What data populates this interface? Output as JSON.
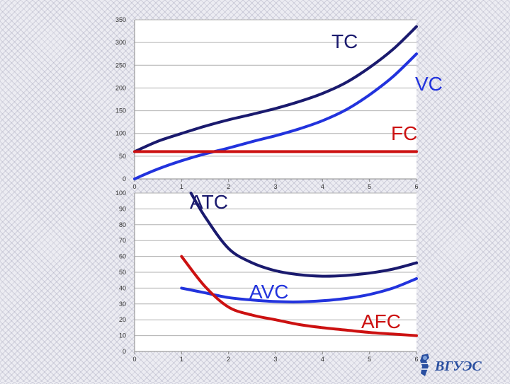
{
  "chart_data": [
    {
      "type": "line",
      "x": [
        0,
        1,
        2,
        3,
        4,
        5,
        6
      ],
      "xlim": [
        0,
        6
      ],
      "ylim": [
        0,
        350
      ],
      "x_ticks": [
        0,
        1,
        2,
        3,
        4,
        5,
        6
      ],
      "y_ticks": [
        0,
        50,
        100,
        150,
        200,
        250,
        300,
        350
      ],
      "grid": "horizontal",
      "legend": "none",
      "series": [
        {
          "name": "TC",
          "color": "#1a1a6e",
          "points": [
            [
              0,
              60
            ],
            [
              0.5,
              83
            ],
            [
              1,
              100
            ],
            [
              1.5,
              116
            ],
            [
              2,
              130
            ],
            [
              2.5,
              142
            ],
            [
              3,
              155
            ],
            [
              3.5,
              170
            ],
            [
              4,
              188
            ],
            [
              4.5,
              212
            ],
            [
              5,
              245
            ],
            [
              5.5,
              285
            ],
            [
              6,
              335
            ]
          ]
        },
        {
          "name": "VC",
          "color": "#2233dd",
          "points": [
            [
              0,
              0
            ],
            [
              0.5,
              22
            ],
            [
              1,
              40
            ],
            [
              1.5,
              55
            ],
            [
              2,
              68
            ],
            [
              2.5,
              82
            ],
            [
              3,
              95
            ],
            [
              3.5,
              110
            ],
            [
              4,
              128
            ],
            [
              4.5,
              152
            ],
            [
              5,
              185
            ],
            [
              5.5,
              225
            ],
            [
              6,
              275
            ]
          ]
        },
        {
          "name": "FC",
          "color": "#cc1111",
          "points": [
            [
              0,
              60
            ],
            [
              6,
              60
            ]
          ]
        }
      ]
    },
    {
      "type": "line",
      "x": [
        0,
        1,
        2,
        3,
        4,
        5,
        6
      ],
      "xlim": [
        0,
        6
      ],
      "ylim": [
        0,
        100
      ],
      "x_ticks": [
        0,
        1,
        2,
        3,
        4,
        5,
        6
      ],
      "y_ticks": [
        0,
        10,
        20,
        30,
        40,
        50,
        60,
        70,
        80,
        90,
        100
      ],
      "grid": "horizontal",
      "legend": "none",
      "series": [
        {
          "name": "ATC",
          "color": "#1a1a6e",
          "points": [
            [
              1.2,
              100
            ],
            [
              1.5,
              85
            ],
            [
              2,
              65
            ],
            [
              2.5,
              56
            ],
            [
              3,
              51
            ],
            [
              3.5,
              48.5
            ],
            [
              4,
              47.5
            ],
            [
              4.5,
              48
            ],
            [
              5,
              49.5
            ],
            [
              5.5,
              52
            ],
            [
              6,
              56
            ]
          ]
        },
        {
          "name": "AVC",
          "color": "#2233dd",
          "points": [
            [
              1,
              40
            ],
            [
              1.5,
              37
            ],
            [
              2,
              34
            ],
            [
              2.5,
              32.5
            ],
            [
              3,
              31.5
            ],
            [
              3.5,
              31.3
            ],
            [
              4,
              32
            ],
            [
              4.5,
              33.5
            ],
            [
              5,
              36
            ],
            [
              5.5,
              40
            ],
            [
              6,
              46
            ]
          ]
        },
        {
          "name": "AFC",
          "color": "#cc1111",
          "points": [
            [
              1,
              60
            ],
            [
              1.5,
              41
            ],
            [
              2,
              28
            ],
            [
              2.5,
              23
            ],
            [
              3,
              20
            ],
            [
              3.5,
              17
            ],
            [
              4,
              15
            ],
            [
              4.5,
              13.5
            ],
            [
              5,
              12
            ],
            [
              5.5,
              11
            ],
            [
              6,
              10
            ]
          ]
        }
      ]
    }
  ],
  "logo": {
    "text": "ВГУЭС",
    "icon": "university-emblem-icon"
  }
}
